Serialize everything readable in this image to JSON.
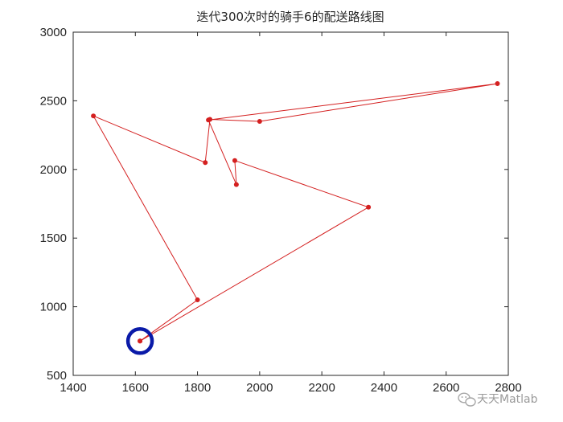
{
  "chart_data": {
    "type": "line",
    "title": "迭代300次时的骑手6的配送路线图",
    "xlabel": "",
    "ylabel": "",
    "xlim": [
      1400,
      2800
    ],
    "ylim": [
      500,
      3000
    ],
    "x_ticks": [
      1400,
      1600,
      1800,
      2000,
      2200,
      2400,
      2600,
      2800
    ],
    "y_ticks": [
      500,
      1000,
      1500,
      2000,
      2500,
      3000
    ],
    "x_tick_labels": [
      "1400",
      "1600",
      "1800",
      "2000",
      "2200",
      "2400",
      "2600",
      "2800"
    ],
    "y_tick_labels": [
      "500",
      "1000",
      "1500",
      "2000",
      "2500",
      "3000"
    ],
    "grid": false,
    "series": [
      {
        "x": [
          1615,
          1800,
          1465,
          1825,
          1840,
          2000,
          2765,
          1835,
          1925,
          1920,
          2350,
          1615
        ],
        "y": [
          750,
          1050,
          2390,
          2050,
          2365,
          2350,
          2625,
          2360,
          1890,
          2065,
          1725,
          750
        ],
        "color": "#d42020"
      }
    ],
    "depot": {
      "x": 1615,
      "y": 750,
      "color": "#0a1aa8"
    }
  },
  "watermark": {
    "text": "天天Matlab",
    "icon": "wechat-icon"
  }
}
